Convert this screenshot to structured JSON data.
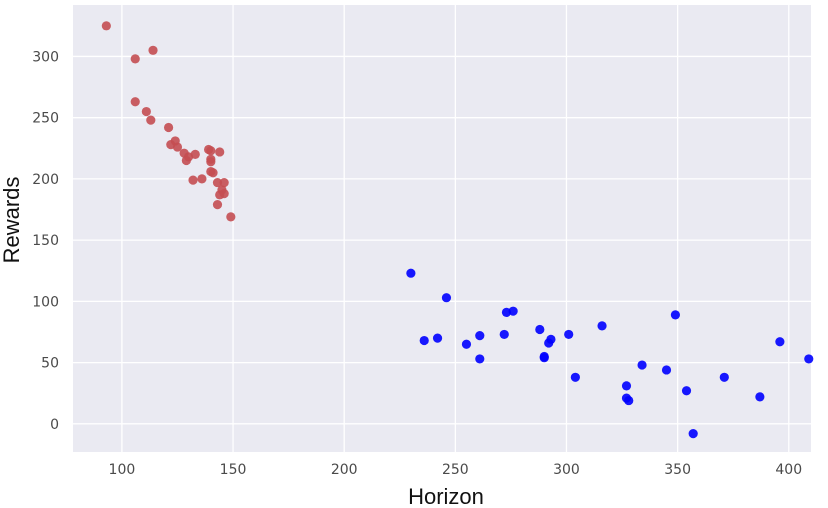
{
  "chart_data": {
    "type": "scatter",
    "xlabel": "Horizon",
    "ylabel": "Rewards",
    "xlim": [
      78,
      410
    ],
    "ylim": [
      -23,
      342
    ],
    "xticks": [
      100,
      150,
      200,
      250,
      300,
      350,
      400
    ],
    "yticks": [
      0,
      50,
      100,
      150,
      200,
      250,
      300
    ],
    "grid": true,
    "background": "#eaeaf2",
    "gridColor": "#ffffff",
    "series": [
      {
        "color": "#c44e52",
        "points": [
          [
            93,
            325
          ],
          [
            106,
            298
          ],
          [
            114,
            305
          ],
          [
            106,
            263
          ],
          [
            111,
            255
          ],
          [
            113,
            248
          ],
          [
            121,
            242
          ],
          [
            124,
            231
          ],
          [
            122,
            228
          ],
          [
            125,
            226
          ],
          [
            128,
            221
          ],
          [
            129,
            215
          ],
          [
            130,
            218
          ],
          [
            133,
            220
          ],
          [
            132,
            199
          ],
          [
            136,
            200
          ],
          [
            139,
            224
          ],
          [
            140,
            223
          ],
          [
            140,
            216
          ],
          [
            140,
            214
          ],
          [
            140,
            206
          ],
          [
            141,
            205
          ],
          [
            143,
            197
          ],
          [
            144,
            222
          ],
          [
            146,
            197
          ],
          [
            145,
            191
          ],
          [
            146,
            188
          ],
          [
            144,
            187
          ],
          [
            143,
            179
          ],
          [
            149,
            169
          ]
        ]
      },
      {
        "color": "#0000ff",
        "points": [
          [
            230,
            123
          ],
          [
            246,
            103
          ],
          [
            236,
            68
          ],
          [
            242,
            70
          ],
          [
            255,
            65
          ],
          [
            261,
            72
          ],
          [
            261,
            53
          ],
          [
            272,
            73
          ],
          [
            273,
            91
          ],
          [
            276,
            92
          ],
          [
            288,
            77
          ],
          [
            290,
            55
          ],
          [
            290,
            54
          ],
          [
            292,
            66
          ],
          [
            293,
            69
          ],
          [
            301,
            73
          ],
          [
            304,
            38
          ],
          [
            316,
            80
          ],
          [
            327,
            21
          ],
          [
            327,
            31
          ],
          [
            328,
            19
          ],
          [
            334,
            48
          ],
          [
            345,
            44
          ],
          [
            349,
            89
          ],
          [
            354,
            27
          ],
          [
            357,
            -8
          ],
          [
            371,
            38
          ],
          [
            387,
            22
          ],
          [
            396,
            67
          ],
          [
            409,
            53
          ]
        ]
      }
    ]
  }
}
